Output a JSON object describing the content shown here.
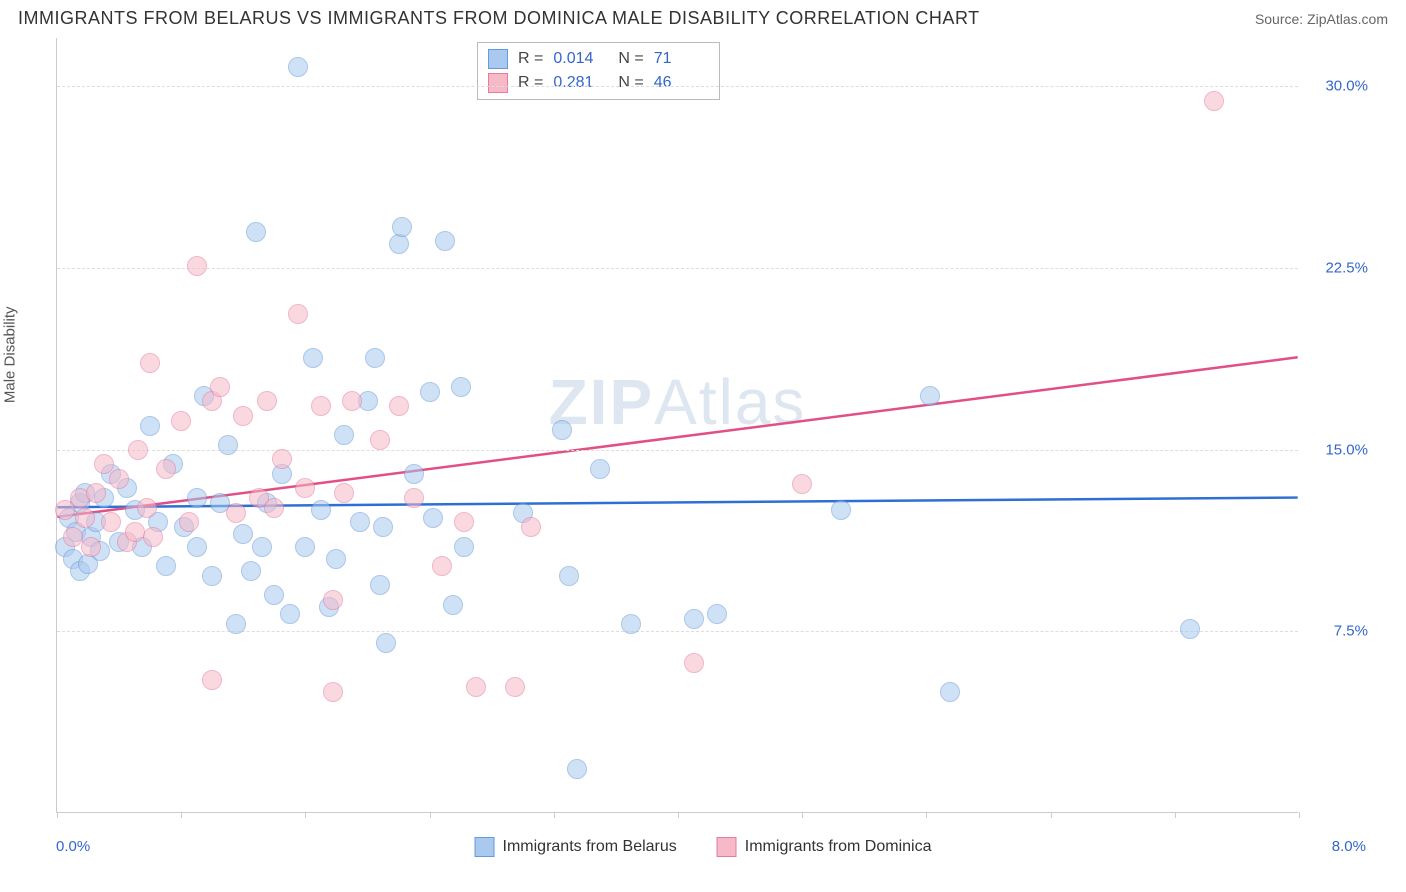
{
  "title": "IMMIGRANTS FROM BELARUS VS IMMIGRANTS FROM DOMINICA MALE DISABILITY CORRELATION CHART",
  "source": "Source: ZipAtlas.com",
  "watermark": "ZIPAtlas",
  "y_axis_label": "Male Disability",
  "chart": {
    "xlim": [
      0.0,
      8.0
    ],
    "ylim": [
      0.0,
      32.0
    ],
    "x_min_label": "0.0%",
    "x_max_label": "8.0%",
    "y_ticks": [
      {
        "v": 7.5,
        "label": "7.5%"
      },
      {
        "v": 15.0,
        "label": "15.0%"
      },
      {
        "v": 22.5,
        "label": "22.5%"
      },
      {
        "v": 30.0,
        "label": "30.0%"
      }
    ],
    "x_tick_positions": [
      0,
      0.8,
      1.6,
      2.4,
      3.2,
      4.0,
      4.8,
      5.6,
      6.4,
      7.2,
      8.0
    ],
    "grid_color": "#dddddd",
    "axis_color": "#cccccc",
    "background_color": "#ffffff",
    "marker_radius": 10,
    "marker_opacity": 0.55,
    "series": [
      {
        "key": "belarus",
        "name": "Immigrants from Belarus",
        "fill": "#a9c9ee",
        "stroke": "#6699dd",
        "line_color": "#2e6fd4",
        "line_width": 2.5,
        "R": "0.014",
        "N": "71",
        "trend": {
          "x1": 0.0,
          "y1": 12.6,
          "x2": 8.0,
          "y2": 13.0
        },
        "points": [
          {
            "x": 0.05,
            "y": 11.0
          },
          {
            "x": 0.08,
            "y": 12.2
          },
          {
            "x": 0.1,
            "y": 10.5
          },
          {
            "x": 0.12,
            "y": 11.6
          },
          {
            "x": 0.15,
            "y": 12.8
          },
          {
            "x": 0.15,
            "y": 10.0
          },
          {
            "x": 0.18,
            "y": 13.2
          },
          {
            "x": 0.2,
            "y": 10.3
          },
          {
            "x": 0.22,
            "y": 11.4
          },
          {
            "x": 0.25,
            "y": 12.0
          },
          {
            "x": 0.28,
            "y": 10.8
          },
          {
            "x": 0.3,
            "y": 13.0
          },
          {
            "x": 0.35,
            "y": 14.0
          },
          {
            "x": 0.4,
            "y": 11.2
          },
          {
            "x": 0.45,
            "y": 13.4
          },
          {
            "x": 0.5,
            "y": 12.5
          },
          {
            "x": 0.55,
            "y": 11.0
          },
          {
            "x": 0.6,
            "y": 16.0
          },
          {
            "x": 0.65,
            "y": 12.0
          },
          {
            "x": 0.7,
            "y": 10.2
          },
          {
            "x": 0.75,
            "y": 14.4
          },
          {
            "x": 0.82,
            "y": 11.8
          },
          {
            "x": 0.9,
            "y": 13.0
          },
          {
            "x": 0.95,
            "y": 17.2
          },
          {
            "x": 1.0,
            "y": 9.8
          },
          {
            "x": 1.05,
            "y": 12.8
          },
          {
            "x": 1.1,
            "y": 15.2
          },
          {
            "x": 1.15,
            "y": 7.8
          },
          {
            "x": 1.2,
            "y": 11.5
          },
          {
            "x": 1.25,
            "y": 10.0
          },
          {
            "x": 1.28,
            "y": 24.0
          },
          {
            "x": 1.35,
            "y": 12.8
          },
          {
            "x": 1.4,
            "y": 9.0
          },
          {
            "x": 1.45,
            "y": 14.0
          },
          {
            "x": 1.5,
            "y": 8.2
          },
          {
            "x": 1.55,
            "y": 30.8
          },
          {
            "x": 1.6,
            "y": 11.0
          },
          {
            "x": 1.65,
            "y": 18.8
          },
          {
            "x": 1.7,
            "y": 12.5
          },
          {
            "x": 1.75,
            "y": 8.5
          },
          {
            "x": 1.8,
            "y": 10.5
          },
          {
            "x": 1.85,
            "y": 15.6
          },
          {
            "x": 1.95,
            "y": 12.0
          },
          {
            "x": 2.0,
            "y": 17.0
          },
          {
            "x": 2.05,
            "y": 18.8
          },
          {
            "x": 2.08,
            "y": 9.4
          },
          {
            "x": 2.1,
            "y": 11.8
          },
          {
            "x": 2.12,
            "y": 7.0
          },
          {
            "x": 2.2,
            "y": 23.5
          },
          {
            "x": 2.22,
            "y": 24.2
          },
          {
            "x": 2.3,
            "y": 14.0
          },
          {
            "x": 2.4,
            "y": 17.4
          },
          {
            "x": 2.42,
            "y": 12.2
          },
          {
            "x": 2.5,
            "y": 23.6
          },
          {
            "x": 2.55,
            "y": 8.6
          },
          {
            "x": 2.6,
            "y": 17.6
          },
          {
            "x": 2.62,
            "y": 11.0
          },
          {
            "x": 3.0,
            "y": 12.4
          },
          {
            "x": 3.25,
            "y": 15.8
          },
          {
            "x": 3.3,
            "y": 9.8
          },
          {
            "x": 3.35,
            "y": 1.8
          },
          {
            "x": 3.5,
            "y": 14.2
          },
          {
            "x": 3.7,
            "y": 7.8
          },
          {
            "x": 4.1,
            "y": 8.0
          },
          {
            "x": 4.25,
            "y": 8.2
          },
          {
            "x": 5.62,
            "y": 17.2
          },
          {
            "x": 5.75,
            "y": 5.0
          },
          {
            "x": 7.3,
            "y": 7.6
          },
          {
            "x": 5.05,
            "y": 12.5
          },
          {
            "x": 0.9,
            "y": 11.0
          },
          {
            "x": 1.32,
            "y": 11.0
          }
        ]
      },
      {
        "key": "dominica",
        "name": "Immigrants from Dominica",
        "fill": "#f5b9c8",
        "stroke": "#e87aa0",
        "line_color": "#e24f87",
        "line_width": 2.5,
        "R": "0.281",
        "N": "46",
        "trend": {
          "x1": 0.0,
          "y1": 12.2,
          "x2": 8.0,
          "y2": 18.8
        },
        "points": [
          {
            "x": 0.05,
            "y": 12.5
          },
          {
            "x": 0.1,
            "y": 11.4
          },
          {
            "x": 0.15,
            "y": 13.0
          },
          {
            "x": 0.18,
            "y": 12.2
          },
          {
            "x": 0.22,
            "y": 11.0
          },
          {
            "x": 0.3,
            "y": 14.4
          },
          {
            "x": 0.35,
            "y": 12.0
          },
          {
            "x": 0.4,
            "y": 13.8
          },
          {
            "x": 0.45,
            "y": 11.2
          },
          {
            "x": 0.52,
            "y": 15.0
          },
          {
            "x": 0.58,
            "y": 12.6
          },
          {
            "x": 0.6,
            "y": 18.6
          },
          {
            "x": 0.62,
            "y": 11.4
          },
          {
            "x": 0.7,
            "y": 14.2
          },
          {
            "x": 0.8,
            "y": 16.2
          },
          {
            "x": 0.85,
            "y": 12.0
          },
          {
            "x": 0.9,
            "y": 22.6
          },
          {
            "x": 1.0,
            "y": 5.5
          },
          {
            "x": 1.0,
            "y": 17.0
          },
          {
            "x": 1.05,
            "y": 17.6
          },
          {
            "x": 1.15,
            "y": 12.4
          },
          {
            "x": 1.2,
            "y": 16.4
          },
          {
            "x": 1.3,
            "y": 13.0
          },
          {
            "x": 1.35,
            "y": 17.0
          },
          {
            "x": 1.4,
            "y": 12.6
          },
          {
            "x": 1.45,
            "y": 14.6
          },
          {
            "x": 1.55,
            "y": 20.6
          },
          {
            "x": 1.6,
            "y": 13.4
          },
          {
            "x": 1.7,
            "y": 16.8
          },
          {
            "x": 1.78,
            "y": 8.8
          },
          {
            "x": 1.78,
            "y": 5.0
          },
          {
            "x": 1.85,
            "y": 13.2
          },
          {
            "x": 1.9,
            "y": 17.0
          },
          {
            "x": 2.08,
            "y": 15.4
          },
          {
            "x": 2.2,
            "y": 16.8
          },
          {
            "x": 2.3,
            "y": 13.0
          },
          {
            "x": 2.48,
            "y": 10.2
          },
          {
            "x": 2.62,
            "y": 12.0
          },
          {
            "x": 2.7,
            "y": 5.2
          },
          {
            "x": 2.95,
            "y": 5.2
          },
          {
            "x": 3.05,
            "y": 11.8
          },
          {
            "x": 4.1,
            "y": 6.2
          },
          {
            "x": 4.8,
            "y": 13.6
          },
          {
            "x": 7.45,
            "y": 29.4
          },
          {
            "x": 0.5,
            "y": 11.6
          },
          {
            "x": 0.25,
            "y": 13.2
          }
        ]
      }
    ]
  },
  "stats_legend": {
    "rows": [
      {
        "series": "belarus",
        "R_label": "R =",
        "N_label": "N ="
      },
      {
        "series": "dominica",
        "R_label": "R =",
        "N_label": "N ="
      }
    ]
  }
}
